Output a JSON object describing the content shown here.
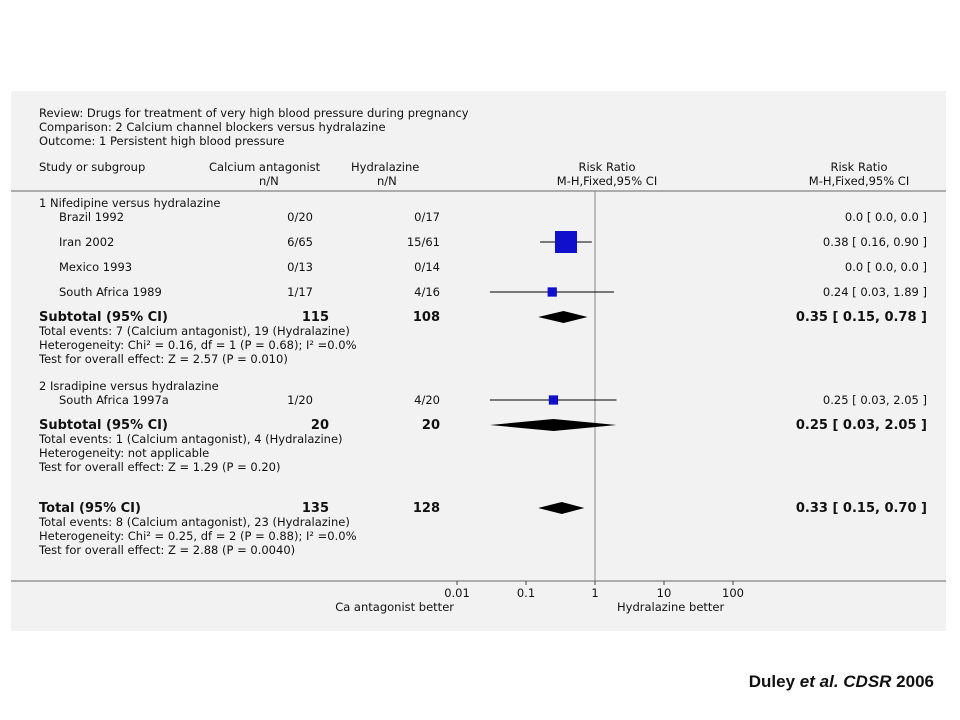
{
  "header": {
    "review": "Review:  Drugs for treatment of very high blood pressure during pregnancy",
    "comparison": "Comparison:  2 Calcium channel blockers versus hydralazine",
    "outcome": "Outcome:  1 Persistent high blood pressure"
  },
  "columns": {
    "study": "Study or subgroup",
    "group1_line1": "Calcium antagonist",
    "group1_line2": "n/N",
    "group2_line1": "Hydralazine",
    "group2_line2": "n/N",
    "plot_line1": "Risk Ratio",
    "plot_line2": "M-H,Fixed,95% CI",
    "est_line1": "Risk Ratio",
    "est_line2": "M-H,Fixed,95% CI"
  },
  "chart_data": {
    "type": "forest",
    "x_scale": "log",
    "xlim": [
      0.01,
      100
    ],
    "null_line": 1,
    "x_ticks": [
      "0.01",
      "0.1",
      "1",
      "10",
      "100"
    ],
    "x_left_label": "Ca antagonist better",
    "x_right_label": "Hydralazine better",
    "rows": [
      {
        "kind": "subgroup",
        "label": "1 Nifedipine versus hydralazine"
      },
      {
        "kind": "study",
        "label": "Brazil 1992",
        "n1": "0/20",
        "n2": "0/17",
        "ci_text": "0.0 [ 0.0, 0.0 ]",
        "rr": null,
        "lo": null,
        "hi": null,
        "weight": 0
      },
      {
        "kind": "study",
        "label": "Iran 2002",
        "n1": "6/65",
        "n2": "15/61",
        "ci_text": "0.38 [ 0.16, 0.90 ]",
        "rr": 0.38,
        "lo": 0.16,
        "hi": 0.9,
        "weight": 1.0
      },
      {
        "kind": "study",
        "label": "Mexico 1993",
        "n1": "0/13",
        "n2": "0/14",
        "ci_text": "0.0 [ 0.0, 0.0 ]",
        "rr": null,
        "lo": null,
        "hi": null,
        "weight": 0
      },
      {
        "kind": "study",
        "label": "South Africa 1989",
        "n1": "1/17",
        "n2": "4/16",
        "ci_text": "0.24 [ 0.03, 1.89 ]",
        "rr": 0.24,
        "lo": 0.03,
        "hi": 1.89,
        "weight": 0.25
      },
      {
        "kind": "subtotal",
        "label": "Subtotal (95% CI)",
        "n1": "115",
        "n2": "108",
        "ci_text": "0.35 [ 0.15, 0.78 ]",
        "rr": 0.35,
        "lo": 0.15,
        "hi": 0.78
      },
      {
        "kind": "note",
        "label": "Total events: 7 (Calcium antagonist), 19 (Hydralazine)"
      },
      {
        "kind": "note",
        "label": "Heterogeneity: Chi² = 0.16, df = 1 (P = 0.68); I² =0.0%"
      },
      {
        "kind": "note",
        "label": "Test for overall effect: Z = 2.57 (P = 0.010)"
      },
      {
        "kind": "subgroup",
        "label": "2 Isradipine versus hydralazine"
      },
      {
        "kind": "study",
        "label": "South Africa 1997a",
        "n1": "1/20",
        "n2": "4/20",
        "ci_text": "0.25 [ 0.03, 2.05 ]",
        "rr": 0.25,
        "lo": 0.03,
        "hi": 2.05,
        "weight": 0.25
      },
      {
        "kind": "subtotal",
        "label": "Subtotal (95% CI)",
        "n1": "20",
        "n2": "20",
        "ci_text": "0.25 [ 0.03, 2.05 ]",
        "rr": 0.25,
        "lo": 0.03,
        "hi": 2.05
      },
      {
        "kind": "note",
        "label": "Total events: 1 (Calcium antagonist), 4 (Hydralazine)"
      },
      {
        "kind": "note",
        "label": "Heterogeneity: not applicable"
      },
      {
        "kind": "note",
        "label": "Test for overall effect: Z = 1.29 (P = 0.20)"
      },
      {
        "kind": "total",
        "label": "Total (95% CI)",
        "n1": "135",
        "n2": "128",
        "ci_text": "0.33 [ 0.15, 0.70 ]",
        "rr": 0.33,
        "lo": 0.15,
        "hi": 0.7
      },
      {
        "kind": "note",
        "label": "Total events: 8 (Calcium antagonist), 23 (Hydralazine)"
      },
      {
        "kind": "note",
        "label": "Heterogeneity: Chi² = 0.25, df = 2 (P = 0.88); I² =0.0%"
      },
      {
        "kind": "note",
        "label": "Test for overall effect: Z = 2.88 (P = 0.0040)"
      }
    ]
  },
  "colors": {
    "study_marker": "#1010cc",
    "diamond": "#000000",
    "panel": "#f2f2f2"
  },
  "citation": {
    "author": "Duley ",
    "etal": "et al.",
    "journal": "CDSR",
    "year": " 2006"
  }
}
